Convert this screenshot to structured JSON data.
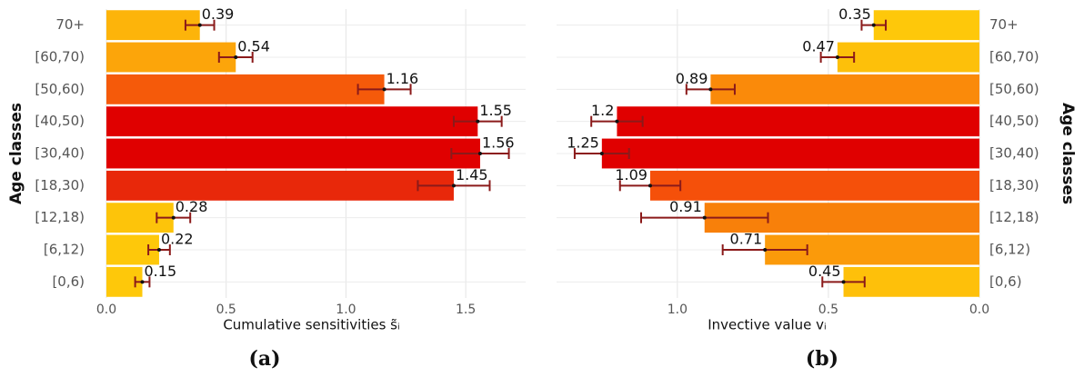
{
  "chart_data": [
    {
      "type": "bar",
      "orientation": "horizontal",
      "caption": "(a)",
      "xlabel": "Cumulative sensitivities  s̃ᵢ",
      "ylabel": "Age classes",
      "categories": [
        "70+",
        "[60,70)",
        "[50,60)",
        "[40,50)",
        "[30,40)",
        "[18,30)",
        "[12,18)",
        "[6,12)",
        "[0,6)"
      ],
      "values": [
        0.39,
        0.54,
        1.16,
        1.55,
        1.56,
        1.45,
        0.28,
        0.22,
        0.15
      ],
      "errors": [
        0.06,
        0.07,
        0.11,
        0.1,
        0.12,
        0.15,
        0.07,
        0.045,
        0.03
      ],
      "colors": [
        "#fdb40a",
        "#fca50a",
        "#f55a0a",
        "#e00000",
        "#e00000",
        "#e8280a",
        "#fdc40a",
        "#fec80a",
        "#fec80a"
      ],
      "error_color": "#8b1a1a",
      "xlim": [
        0,
        1.75
      ],
      "x_reversed": false,
      "xticks": [
        {
          "value": 0,
          "label": "0.0"
        },
        0.5,
        {
          "value": 1,
          "label": "1.0"
        },
        1.5
      ],
      "category_side": "left",
      "grid": true
    },
    {
      "type": "bar",
      "orientation": "horizontal",
      "caption": "(b)",
      "xlabel": "Invective value vᵢ",
      "ylabel": "Age classes",
      "categories": [
        "70+",
        "[60,70)",
        "[50,60)",
        "[40,50)",
        "[30,40)",
        "[18,30)",
        "[12,18)",
        "[6,12)",
        "[0,6)"
      ],
      "values": [
        0.35,
        0.47,
        0.89,
        1.2,
        1.25,
        1.09,
        0.91,
        0.71,
        0.45
      ],
      "errors": [
        0.04,
        0.055,
        0.08,
        0.085,
        0.09,
        0.1,
        0.21,
        0.14,
        0.07
      ],
      "colors": [
        "#fec80a",
        "#fdc00a",
        "#fa8a0a",
        "#e00000",
        "#e00000",
        "#f5500a",
        "#f8800a",
        "#fb9a0a",
        "#fec00a"
      ],
      "error_color": "#8b1a1a",
      "xlim": [
        0,
        1.4
      ],
      "x_reversed": true,
      "xticks": [
        {
          "value": 1,
          "label": "1.0"
        },
        0.5,
        {
          "value": 0,
          "label": "0.0"
        }
      ],
      "category_side": "right",
      "grid": true
    }
  ]
}
